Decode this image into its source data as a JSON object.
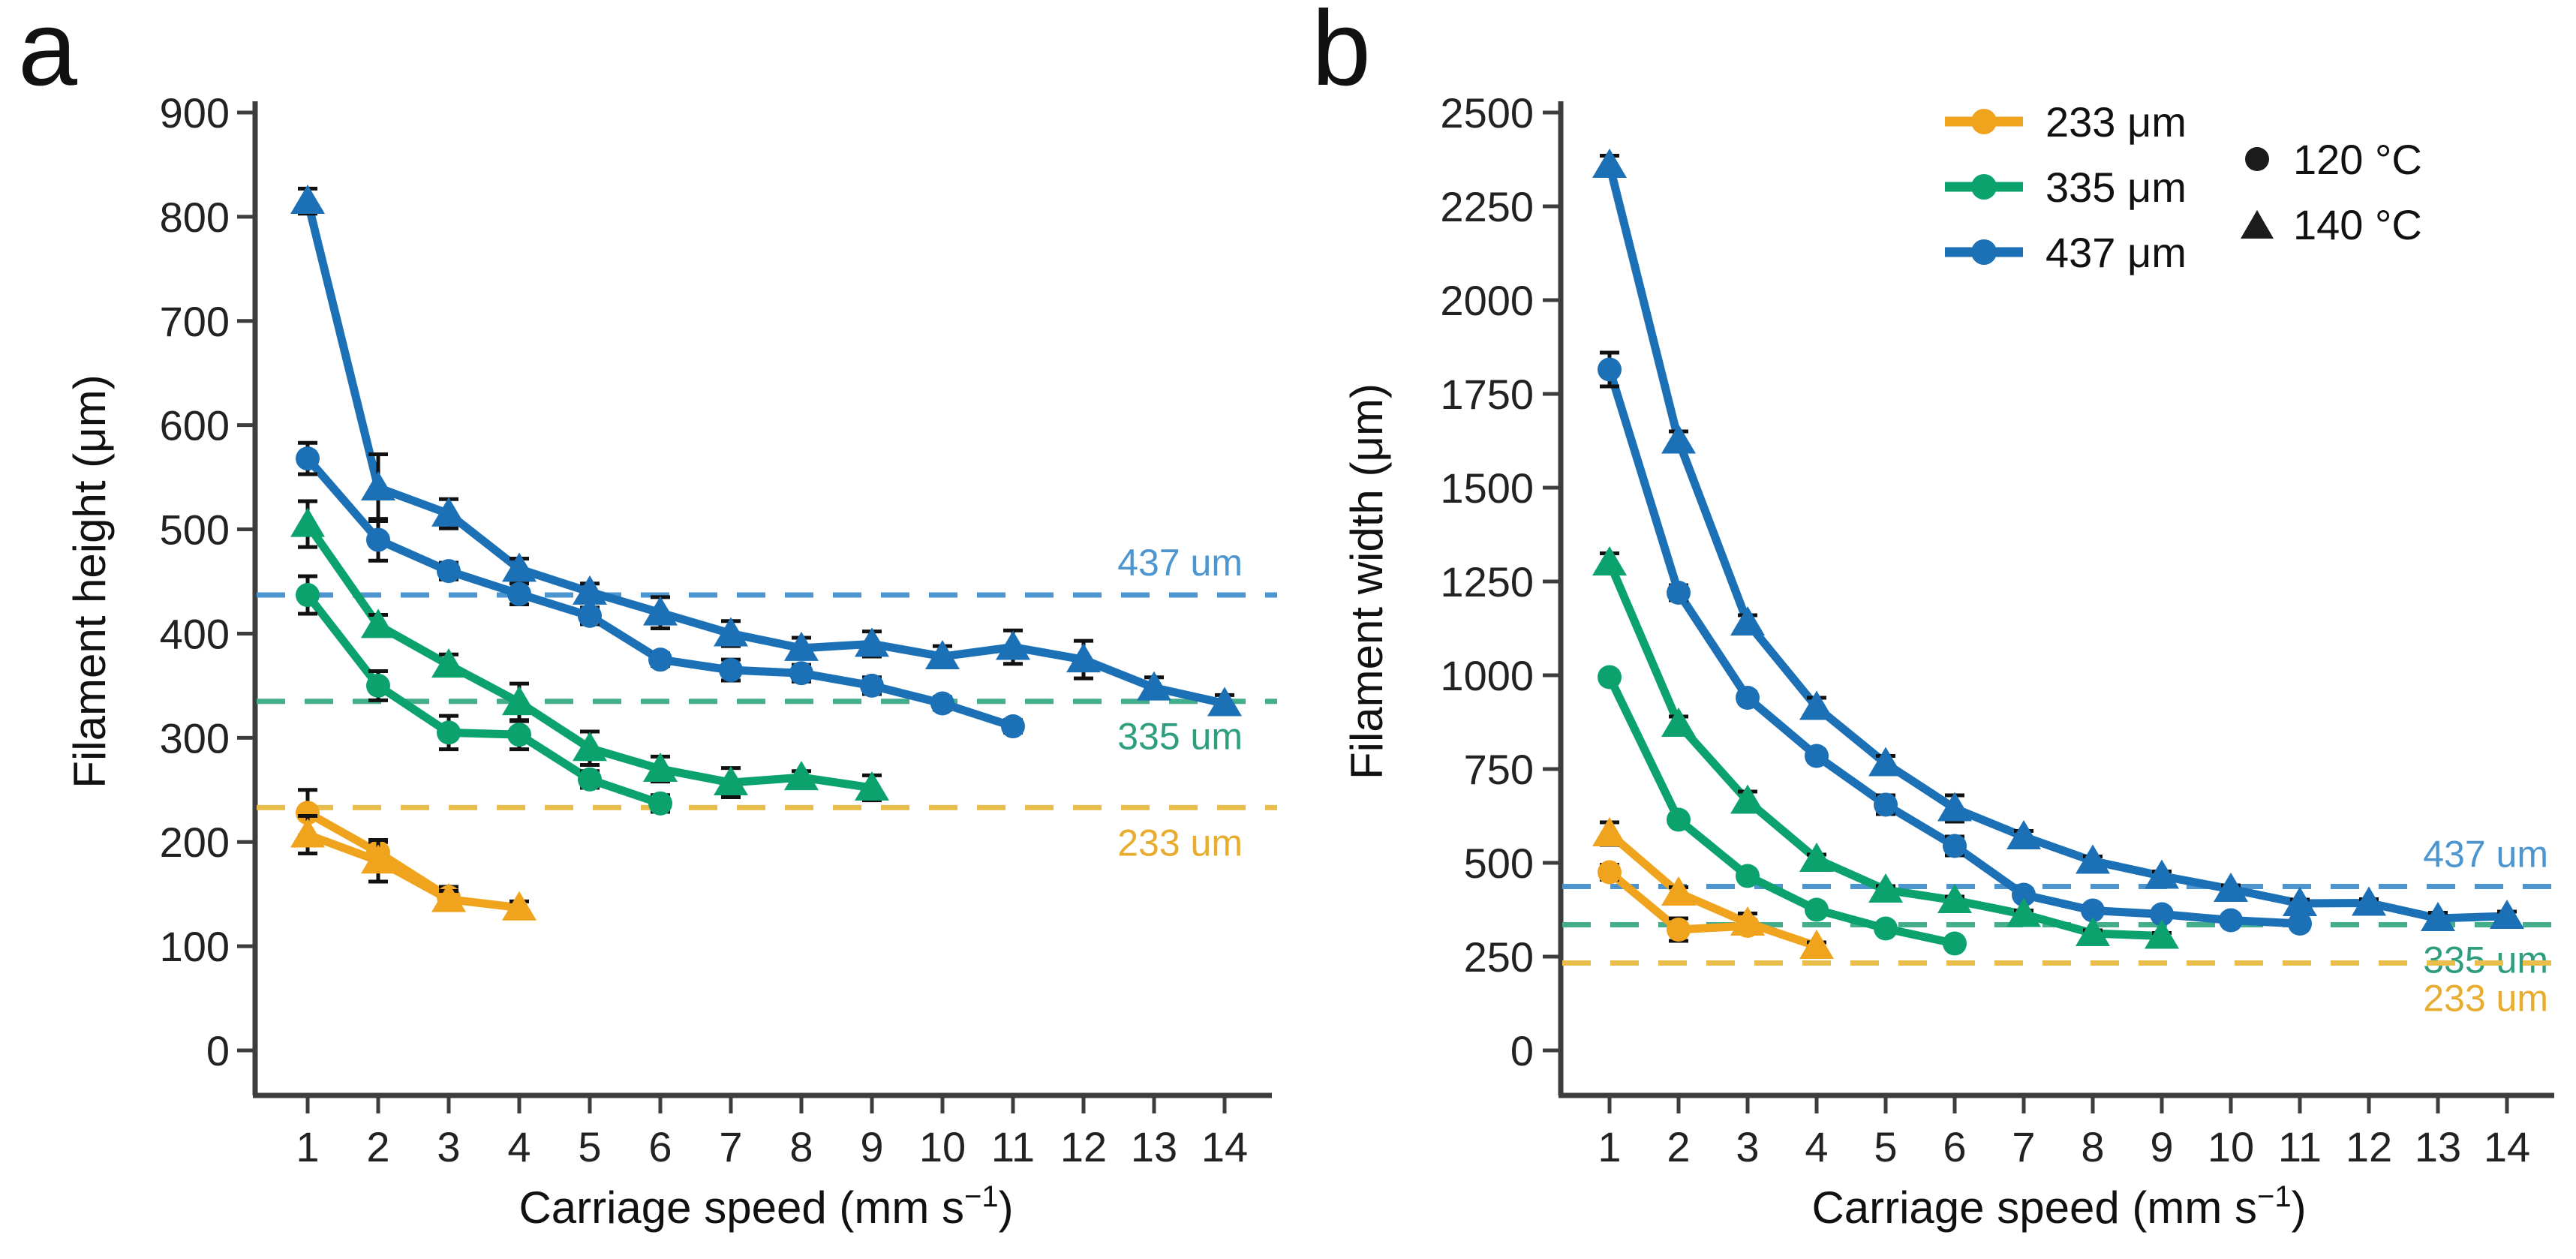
{
  "panels": {
    "a": "a",
    "b": "b"
  },
  "colors": {
    "blue": "#1C70B6",
    "green": "#0CA26D",
    "orange": "#F0A41D",
    "dash_blue": "#4C95CF",
    "dash_green": "#43AD8C",
    "dash_orange": "#E9BE4C",
    "axis": "#3d3d3d",
    "text": "#222222",
    "marker_black": "#1c1c1c"
  },
  "legend": {
    "diameters": [
      {
        "label": "233 μm",
        "color": "#F0A41D"
      },
      {
        "label": "335 μm",
        "color": "#0CA26D"
      },
      {
        "label": "437 μm",
        "color": "#1C70B6"
      }
    ],
    "temperatures": [
      {
        "label": "120 °C",
        "marker": "circle"
      },
      {
        "label": "140 °C",
        "marker": "triangle"
      }
    ]
  },
  "chart_data": [
    {
      "id": "a",
      "type": "line",
      "ylabel": "Filament height (μm)",
      "xlabel": {
        "text": "Carriage speed (mm s",
        "sup": "−1",
        "close": ")"
      },
      "xlim": [
        1,
        14
      ],
      "x_ticks": [
        1,
        2,
        3,
        4,
        5,
        6,
        7,
        8,
        9,
        10,
        11,
        12,
        13,
        14
      ],
      "ylim": [
        0,
        900
      ],
      "y_ticks": [
        0,
        100,
        200,
        300,
        400,
        500,
        600,
        700,
        800,
        900
      ],
      "grid": false,
      "ref_lines": [
        {
          "value": 437,
          "label": "437 um",
          "color": "#4C95CF",
          "label_color": "#4C95CF",
          "label_side": "above"
        },
        {
          "value": 335,
          "label": "335 um",
          "color": "#43AD8C",
          "label_color": "#2E9E7E",
          "label_side": "below"
        },
        {
          "value": 233,
          "label": "233 um",
          "color": "#E9BE4C",
          "label_color": "#E8AC2E",
          "label_side": "below"
        }
      ],
      "series": [
        {
          "name": "437 μm · 140 °C",
          "diameter": "437 μm",
          "temperature": "140 °C",
          "marker": "triangle",
          "color": "#1C70B6",
          "x": [
            1,
            2,
            3,
            4,
            5,
            6,
            7,
            8,
            9,
            10,
            11,
            12,
            13,
            14
          ],
          "y": [
            815,
            540,
            515,
            462,
            440,
            420,
            400,
            386,
            390,
            378,
            387,
            375,
            348,
            333
          ],
          "err": [
            12,
            32,
            14,
            10,
            8,
            15,
            12,
            10,
            12,
            10,
            16,
            18,
            10,
            8
          ]
        },
        {
          "name": "437 μm · 120 °C",
          "diameter": "437 μm",
          "temperature": "120 °C",
          "marker": "circle",
          "color": "#1C70B6",
          "x": [
            1,
            2,
            3,
            4,
            5,
            6,
            7,
            8,
            9,
            10,
            11
          ],
          "y": [
            568,
            490,
            460,
            438,
            417,
            375,
            365,
            362,
            350,
            333,
            311
          ],
          "err": [
            15,
            20,
            8,
            10,
            8,
            6,
            10,
            8,
            8,
            6,
            6
          ]
        },
        {
          "name": "335 μm · 140 °C",
          "diameter": "335 μm",
          "temperature": "140 °C",
          "marker": "triangle",
          "color": "#0CA26D",
          "x": [
            1,
            2,
            3,
            4,
            5,
            6,
            7,
            8,
            9
          ],
          "y": [
            505,
            408,
            370,
            334,
            290,
            270,
            257,
            262,
            252
          ],
          "err": [
            22,
            10,
            10,
            18,
            16,
            12,
            14,
            6,
            12
          ]
        },
        {
          "name": "335 μm · 120 °C",
          "diameter": "335 μm",
          "temperature": "120 °C",
          "marker": "circle",
          "color": "#0CA26D",
          "x": [
            1,
            2,
            3,
            4,
            5,
            6
          ],
          "y": [
            437,
            350,
            305,
            303,
            260,
            237
          ],
          "err": [
            18,
            14,
            16,
            14,
            8,
            8
          ]
        },
        {
          "name": "233 μm · 120 °C",
          "diameter": "233 μm",
          "temperature": "120 °C",
          "marker": "circle",
          "color": "#F0A41D",
          "x": [
            1,
            2,
            3
          ],
          "y": [
            228,
            190,
            147
          ],
          "err": [
            22,
            10,
            10
          ]
        },
        {
          "name": "233 μm · 140 °C",
          "diameter": "233 μm",
          "temperature": "140 °C",
          "marker": "triangle",
          "color": "#F0A41D",
          "x": [
            1,
            2,
            3,
            4
          ],
          "y": [
            207,
            182,
            145,
            137
          ],
          "err": [
            18,
            20,
            8,
            6
          ]
        }
      ]
    },
    {
      "id": "b",
      "type": "line",
      "ylabel": "Filament width (μm)",
      "xlabel": {
        "text": "Carriage speed (mm s",
        "sup": "−1",
        "close": ")"
      },
      "xlim": [
        1,
        14
      ],
      "x_ticks": [
        1,
        2,
        3,
        4,
        5,
        6,
        7,
        8,
        9,
        10,
        11,
        12,
        13,
        14
      ],
      "ylim": [
        0,
        2500
      ],
      "y_ticks": [
        0,
        250,
        500,
        750,
        1000,
        1250,
        1500,
        1750,
        2000,
        2250,
        2500
      ],
      "grid": false,
      "ref_lines": [
        {
          "value": 437,
          "label": "437 um",
          "color": "#4C95CF",
          "label_color": "#4C95CF",
          "label_side": "above"
        },
        {
          "value": 335,
          "label": "335 um",
          "color": "#43AD8C",
          "label_color": "#2E9E7E",
          "label_side": "below"
        },
        {
          "value": 233,
          "label": "233 um",
          "color": "#E9BE4C",
          "label_color": "#E8AC2E",
          "label_side": "below"
        }
      ],
      "series": [
        {
          "name": "437 μm · 140 °C",
          "diameter": "437 μm",
          "temperature": "140 °C",
          "marker": "triangle",
          "color": "#1C70B6",
          "x": [
            1,
            2,
            3,
            4,
            5,
            6,
            7,
            8,
            9,
            10,
            11,
            12,
            13,
            14
          ],
          "y": [
            2360,
            1625,
            1140,
            915,
            765,
            645,
            570,
            505,
            465,
            430,
            392,
            393,
            352,
            358
          ],
          "err": [
            25,
            25,
            20,
            25,
            20,
            35,
            15,
            12,
            12,
            10,
            10,
            10,
            15,
            12
          ]
        },
        {
          "name": "437 μm · 120 °C",
          "diameter": "437 μm",
          "temperature": "120 °C",
          "marker": "circle",
          "color": "#1C70B6",
          "x": [
            1,
            2,
            3,
            4,
            5,
            6,
            7,
            8,
            9,
            10,
            11
          ],
          "y": [
            1815,
            1220,
            940,
            785,
            655,
            545,
            415,
            373,
            363,
            347,
            338
          ],
          "err": [
            45,
            20,
            15,
            15,
            25,
            25,
            15,
            10,
            10,
            8,
            8
          ]
        },
        {
          "name": "335 μm · 140 °C",
          "diameter": "335 μm",
          "temperature": "140 °C",
          "marker": "triangle",
          "color": "#0CA26D",
          "x": [
            1,
            2,
            3,
            4,
            5,
            6,
            7,
            8,
            9
          ],
          "y": [
            1300,
            870,
            665,
            510,
            428,
            400,
            363,
            312,
            305
          ],
          "err": [
            25,
            20,
            25,
            12,
            10,
            10,
            10,
            8,
            8
          ]
        },
        {
          "name": "335 μm · 120 °C",
          "diameter": "335 μm",
          "temperature": "120 °C",
          "marker": "circle",
          "color": "#0CA26D",
          "x": [
            1,
            2,
            3,
            4,
            5,
            6
          ],
          "y": [
            995,
            615,
            465,
            375,
            325,
            285
          ],
          "err": [
            15,
            12,
            10,
            8,
            8,
            8
          ]
        },
        {
          "name": "233 μm · 120 °C",
          "diameter": "233 μm",
          "temperature": "120 °C",
          "marker": "circle",
          "color": "#F0A41D",
          "x": [
            1,
            2,
            3
          ],
          "y": [
            475,
            322,
            332
          ],
          "err": [
            20,
            30,
            15
          ]
        },
        {
          "name": "233 μm · 140 °C",
          "diameter": "233 μm",
          "temperature": "140 °C",
          "marker": "triangle",
          "color": "#F0A41D",
          "x": [
            1,
            2,
            3,
            4
          ],
          "y": [
            578,
            420,
            340,
            278
          ],
          "err": [
            30,
            15,
            25,
            10
          ]
        }
      ]
    }
  ]
}
